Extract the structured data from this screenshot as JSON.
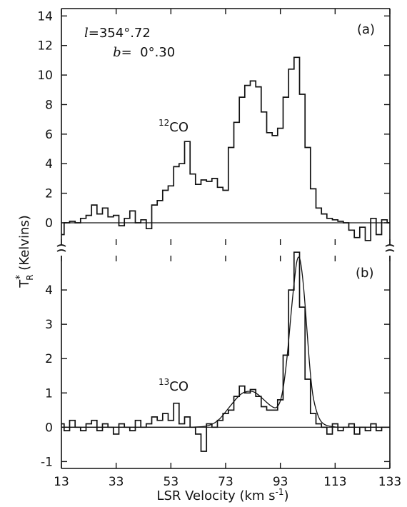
{
  "chart_data": [
    {
      "type": "line",
      "panel_label": "(a)",
      "annotation": "12CO",
      "annotation_mass": "12",
      "annotation_species": "CO",
      "coords": {
        "l_symbol": "l",
        "l_value": "=354°.72",
        "b_symbol": "b",
        "b_value": "=  0°.30"
      },
      "ylim": [
        -1.5,
        14.5
      ],
      "yticks": [
        "0",
        "2",
        "4",
        "6",
        "8",
        "10",
        "12",
        "14"
      ],
      "yticks_values": [
        0,
        2,
        4,
        6,
        8,
        10,
        12,
        14
      ],
      "series": [
        {
          "style": "histogram",
          "x": [
            13,
            15,
            17,
            19,
            21,
            23,
            25,
            27,
            29,
            31,
            33,
            35,
            37,
            39,
            41,
            43,
            45,
            47,
            49,
            51,
            53,
            55,
            57,
            59,
            61,
            63,
            65,
            67,
            69,
            71,
            73,
            75,
            77,
            79,
            81,
            83,
            85,
            87,
            89,
            91,
            93,
            95,
            97,
            99,
            101,
            103,
            105,
            107,
            109,
            111,
            113,
            115,
            117,
            119,
            121,
            123,
            125,
            127,
            129,
            131,
            133
          ],
          "y": [
            -0.8,
            0.0,
            0.1,
            0.0,
            0.3,
            0.5,
            1.2,
            0.6,
            1.0,
            0.4,
            0.5,
            -0.2,
            0.3,
            0.8,
            0.0,
            0.2,
            -0.4,
            1.2,
            1.5,
            2.2,
            2.5,
            3.8,
            4.0,
            5.5,
            3.3,
            2.6,
            2.9,
            2.8,
            3.0,
            2.4,
            2.2,
            5.1,
            6.8,
            8.5,
            9.3,
            9.6,
            9.2,
            7.5,
            6.1,
            5.9,
            6.4,
            8.5,
            10.4,
            11.2,
            8.7,
            5.1,
            2.3,
            1.0,
            0.6,
            0.3,
            0.2,
            0.1,
            0.0,
            -0.5,
            -1.0,
            -0.3,
            -1.2,
            0.3,
            -0.8,
            0.2,
            0.0
          ]
        }
      ]
    },
    {
      "type": "line",
      "panel_label": "(b)",
      "annotation": "13CO",
      "annotation_mass": "13",
      "annotation_species": "CO",
      "ylim": [
        -1.2,
        5.0
      ],
      "yticks": [
        "-1",
        "0",
        "1",
        "2",
        "3",
        "4"
      ],
      "yticks_values": [
        -1,
        0,
        1,
        2,
        3,
        4
      ],
      "series": [
        {
          "style": "histogram",
          "x": [
            13,
            15,
            17,
            19,
            21,
            23,
            25,
            27,
            29,
            31,
            33,
            35,
            37,
            39,
            41,
            43,
            45,
            47,
            49,
            51,
            53,
            55,
            57,
            59,
            61,
            63,
            65,
            67,
            69,
            71,
            73,
            75,
            77,
            79,
            81,
            83,
            85,
            87,
            89,
            91,
            93,
            95,
            97,
            99,
            101,
            103,
            105,
            107,
            109,
            111,
            113,
            115,
            117,
            119,
            121,
            123,
            125,
            127,
            129,
            131,
            133
          ],
          "y": [
            0.1,
            -0.1,
            0.2,
            0.0,
            -0.1,
            0.1,
            0.2,
            -0.1,
            0.1,
            0.0,
            -0.2,
            0.1,
            0.0,
            -0.1,
            0.2,
            0.0,
            0.1,
            0.3,
            0.2,
            0.4,
            0.2,
            0.7,
            0.1,
            0.3,
            0.0,
            -0.2,
            -0.7,
            0.1,
            0.0,
            0.2,
            0.4,
            0.5,
            0.9,
            1.2,
            1.0,
            1.1,
            0.9,
            0.6,
            0.5,
            0.5,
            0.8,
            2.1,
            4.0,
            5.1,
            3.5,
            1.4,
            0.4,
            0.1,
            0.0,
            -0.2,
            0.1,
            -0.1,
            0.0,
            0.1,
            -0.2,
            0.0,
            -0.1,
            0.1,
            -0.1,
            0.0,
            0.0
          ]
        },
        {
          "style": "smooth-fit",
          "x": [
            13,
            17,
            21,
            25,
            29,
            33,
            37,
            41,
            45,
            49,
            53,
            57,
            61,
            65,
            67,
            69,
            71,
            73,
            75,
            77,
            79,
            81,
            83,
            85,
            87,
            89,
            91,
            92,
            93,
            94,
            95,
            96,
            97,
            98,
            99,
            100,
            101,
            102,
            103,
            104,
            105,
            107,
            109,
            113,
            117,
            121,
            125,
            129,
            133
          ],
          "y": [
            0.0,
            0.0,
            0.0,
            0.0,
            0.0,
            0.0,
            0.0,
            0.0,
            0.0,
            0.0,
            0.0,
            0.0,
            0.0,
            0.02,
            0.05,
            0.12,
            0.25,
            0.45,
            0.65,
            0.85,
            1.0,
            1.05,
            1.05,
            0.95,
            0.8,
            0.65,
            0.55,
            0.6,
            0.75,
            1.1,
            1.7,
            2.5,
            3.4,
            4.2,
            4.9,
            5.0,
            4.5,
            3.6,
            2.5,
            1.5,
            0.8,
            0.25,
            0.06,
            0.0,
            0.0,
            0.0,
            0.0,
            0.0,
            0.0
          ]
        }
      ]
    }
  ],
  "shared_x": {
    "xlim": [
      13,
      133
    ],
    "xticks": [
      "13",
      "33",
      "53",
      "73",
      "93",
      "113",
      "133"
    ],
    "xticks_values": [
      13,
      33,
      53,
      73,
      93,
      113,
      133
    ],
    "xlabel": "LSR Velocity (km s",
    "xlabel_sup": "-1",
    "xlabel_close": ")"
  },
  "shared_y": {
    "ylabel_main": "T",
    "ylabel_sup": "*",
    "ylabel_sub": "R",
    "ylabel_rest": " (Kelvins)"
  }
}
